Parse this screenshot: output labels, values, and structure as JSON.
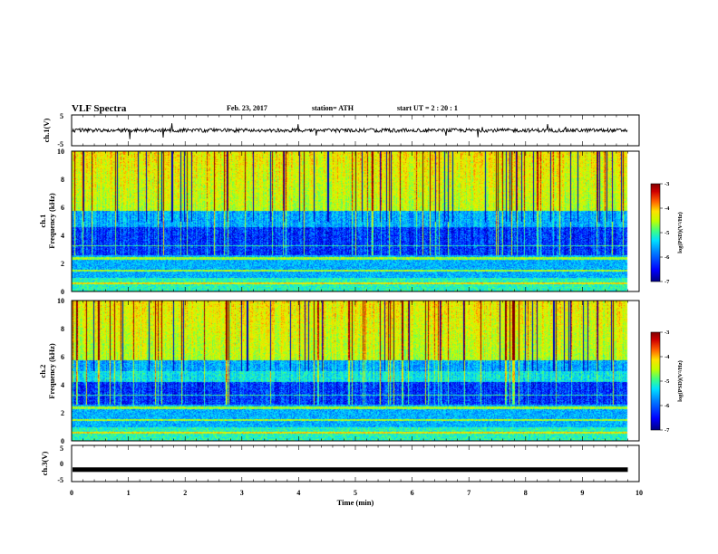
{
  "header": {
    "title": "VLF Spectra",
    "date": "Feb. 23, 2017",
    "station": "station= ATH",
    "start": "start  UT  =   2  : 20 : 1"
  },
  "colors": {
    "waveform": "#000000",
    "colormap": [
      "#000080",
      "#0000ff",
      "#0080ff",
      "#00e0ff",
      "#40ff80",
      "#c0ff00",
      "#ffe000",
      "#ff6000",
      "#d00000",
      "#800000"
    ]
  },
  "chart_data": [
    {
      "type": "line",
      "id": "ch1-waveform",
      "ylabel": "ch.1(V)",
      "ylim": [
        -5,
        5
      ],
      "yticks": [
        "5",
        "-5"
      ],
      "baseline": 0,
      "xlim": [
        0,
        10
      ]
    },
    {
      "type": "heatmap",
      "id": "ch1-spectrogram",
      "ylabel_top": "ch.1",
      "ylabel": "Frequency  (kHz)",
      "ylim": [
        0,
        10
      ],
      "yticks": [
        "0",
        "2",
        "4",
        "6",
        "8",
        "10"
      ],
      "xlim": [
        0,
        10
      ],
      "colorbar": {
        "label": "log(PSD)(V²/Hz)",
        "range": [
          -7,
          -3
        ],
        "ticks": [
          "-3",
          "-4",
          "-5",
          "-6",
          "-7"
        ]
      }
    },
    {
      "type": "heatmap",
      "id": "ch2-spectrogram",
      "ylabel_top": "ch.2",
      "ylabel": "Frequency  (kHz)",
      "ylim": [
        0,
        10
      ],
      "yticks": [
        "0",
        "2",
        "4",
        "6",
        "8",
        "10"
      ],
      "xlim": [
        0,
        10
      ],
      "colorbar": {
        "label": "log(PSD)(V²/Hz)",
        "range": [
          -7,
          -3
        ],
        "ticks": [
          "-3",
          "-4",
          "-5",
          "-6",
          "-7"
        ]
      }
    },
    {
      "type": "line",
      "id": "ch3-waveform",
      "ylabel": "ch.3(V)",
      "ylim": [
        -5,
        5
      ],
      "yticks": [
        "5",
        "0",
        "-5"
      ],
      "baseline": -1.7,
      "xlim": [
        0,
        10
      ]
    }
  ],
  "x_axis": {
    "label": "Time  (min)",
    "range": [
      0,
      10
    ],
    "ticks": [
      "0",
      "1",
      "2",
      "3",
      "4",
      "5",
      "6",
      "7",
      "8",
      "9",
      "10"
    ]
  }
}
